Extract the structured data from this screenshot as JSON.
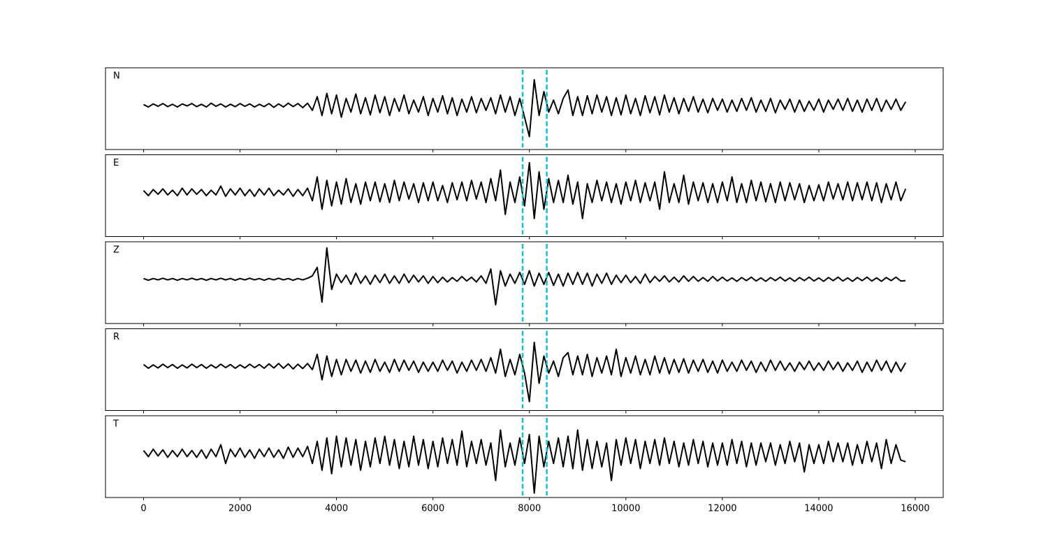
{
  "chart_data": {
    "type": "line",
    "layout": "stacked",
    "x": [
      0,
      100,
      200,
      300,
      400,
      500,
      600,
      700,
      800,
      900,
      1000,
      1100,
      1200,
      1300,
      1400,
      1500,
      1600,
      1700,
      1800,
      1900,
      2000,
      2100,
      2200,
      2300,
      2400,
      2500,
      2600,
      2700,
      2800,
      2900,
      3000,
      3100,
      3200,
      3300,
      3400,
      3500,
      3600,
      3700,
      3800,
      3900,
      4000,
      4100,
      4200,
      4300,
      4400,
      4500,
      4600,
      4700,
      4800,
      4900,
      5000,
      5100,
      5200,
      5300,
      5400,
      5500,
      5600,
      5700,
      5800,
      5900,
      6000,
      6100,
      6200,
      6300,
      6400,
      6500,
      6600,
      6700,
      6800,
      6900,
      7000,
      7100,
      7200,
      7300,
      7400,
      7500,
      7600,
      7700,
      7800,
      7900,
      8000,
      8100,
      8200,
      8300,
      8400,
      8500,
      8600,
      8700,
      8800,
      8900,
      9000,
      9100,
      9200,
      9300,
      9400,
      9500,
      9600,
      9700,
      9800,
      9900,
      10000,
      10100,
      10200,
      10300,
      10400,
      10500,
      10600,
      10700,
      10800,
      10900,
      11000,
      11100,
      11200,
      11300,
      11400,
      11500,
      11600,
      11700,
      11800,
      11900,
      12000,
      12100,
      12200,
      12300,
      12400,
      12500,
      12600,
      12700,
      12800,
      12900,
      13000,
      13100,
      13200,
      13300,
      13400,
      13500,
      13600,
      13700,
      13800,
      13900,
      14000,
      14100,
      14200,
      14300,
      14400,
      14500,
      14600,
      14700,
      14800,
      14900,
      15000,
      15100,
      15200,
      15300,
      15400,
      15500,
      15600,
      15700,
      15800
    ],
    "series": [
      {
        "name": "N",
        "color": "#000000",
        "values": [
          0.02,
          -0.05,
          0.04,
          -0.03,
          0.05,
          -0.04,
          0.03,
          -0.05,
          0.04,
          -0.02,
          0.05,
          -0.04,
          0.03,
          -0.05,
          0.06,
          -0.03,
          0.04,
          -0.05,
          0.03,
          -0.04,
          0.05,
          -0.03,
          0.04,
          -0.05,
          0.03,
          -0.04,
          0.05,
          -0.06,
          0.04,
          -0.05,
          0.06,
          -0.04,
          0.05,
          -0.07,
          0.06,
          -0.15,
          0.25,
          -0.3,
          0.35,
          -0.25,
          0.3,
          -0.35,
          0.2,
          -0.2,
          0.33,
          -0.25,
          0.22,
          -0.28,
          0.3,
          -0.22,
          0.25,
          -0.3,
          0.2,
          -0.18,
          0.3,
          -0.25,
          0.15,
          -0.2,
          0.25,
          -0.3,
          0.2,
          -0.2,
          0.28,
          -0.25,
          0.22,
          -0.3,
          0.18,
          -0.2,
          0.25,
          -0.22,
          0.2,
          -0.15,
          0.22,
          -0.25,
          0.3,
          -0.2,
          0.25,
          -0.3,
          0.2,
          -0.35,
          -0.92,
          0.75,
          -0.3,
          0.4,
          -0.2,
          0.15,
          -0.25,
          0.2,
          0.45,
          -0.3,
          0.25,
          -0.3,
          0.28,
          -0.25,
          0.3,
          -0.2,
          0.25,
          -0.3,
          0.22,
          -0.28,
          0.3,
          -0.25,
          0.2,
          -0.3,
          0.28,
          -0.22,
          0.25,
          -0.28,
          0.3,
          -0.2,
          0.22,
          -0.25,
          0.2,
          -0.18,
          0.25,
          -0.2,
          0.18,
          -0.22,
          0.2,
          -0.15,
          0.18,
          -0.2,
          0.15,
          -0.18,
          0.2,
          -0.15,
          0.22,
          -0.2,
          0.15,
          -0.18,
          0.2,
          -0.22,
          0.15,
          -0.12,
          0.18,
          -0.2,
          0.15,
          -0.18,
          0.12,
          -0.15,
          0.18,
          -0.2,
          0.15,
          -0.12,
          0.18,
          -0.15,
          0.2,
          -0.18,
          0.15,
          -0.2,
          0.18,
          -0.15,
          0.2,
          -0.18,
          0.15,
          -0.12,
          0.18,
          -0.15,
          0.1
        ]
      },
      {
        "name": "E",
        "color": "#000000",
        "values": [
          0.05,
          -0.1,
          0.08,
          -0.06,
          0.1,
          -0.08,
          0.06,
          -0.1,
          0.12,
          -0.08,
          0.1,
          -0.06,
          0.08,
          -0.1,
          0.06,
          -0.08,
          0.18,
          -0.12,
          0.1,
          -0.08,
          0.12,
          -0.1,
          0.08,
          -0.12,
          0.1,
          -0.08,
          0.12,
          -0.1,
          0.06,
          -0.08,
          0.1,
          -0.12,
          0.08,
          -0.1,
          0.12,
          -0.25,
          0.45,
          -0.5,
          0.35,
          -0.4,
          0.3,
          -0.35,
          0.4,
          -0.3,
          0.25,
          -0.35,
          0.3,
          -0.25,
          0.3,
          -0.28,
          0.25,
          -0.3,
          0.35,
          -0.25,
          0.3,
          -0.2,
          0.25,
          -0.3,
          0.28,
          -0.25,
          0.3,
          -0.25,
          0.2,
          -0.3,
          0.28,
          -0.22,
          0.3,
          -0.25,
          0.35,
          -0.2,
          0.3,
          -0.3,
          0.4,
          -0.25,
          0.65,
          -0.65,
          0.3,
          -0.3,
          0.45,
          -0.4,
          0.87,
          -0.77,
          0.6,
          -0.5,
          0.4,
          -0.3,
          0.35,
          -0.3,
          0.5,
          -0.35,
          0.3,
          -0.77,
          0.25,
          -0.3,
          0.35,
          -0.25,
          0.3,
          -0.3,
          0.25,
          -0.35,
          0.3,
          -0.25,
          0.35,
          -0.3,
          0.28,
          -0.25,
          0.3,
          -0.5,
          0.6,
          -0.3,
          0.25,
          -0.3,
          0.5,
          -0.35,
          0.3,
          -0.25,
          0.28,
          -0.3,
          0.25,
          -0.3,
          0.3,
          -0.25,
          0.45,
          -0.3,
          0.25,
          -0.3,
          0.35,
          -0.25,
          0.3,
          -0.28,
          0.25,
          -0.3,
          0.3,
          -0.25,
          0.28,
          -0.22,
          0.25,
          -0.3,
          0.2,
          -0.25,
          0.22,
          -0.25,
          0.3,
          -0.2,
          0.25,
          -0.22,
          0.3,
          -0.25,
          0.28,
          -0.22,
          0.3,
          -0.25,
          0.28,
          -0.3,
          0.25,
          -0.22,
          0.3,
          -0.25,
          0.1
        ]
      },
      {
        "name": "Z",
        "color": "#000000",
        "values": [
          0.02,
          -0.03,
          0.02,
          -0.02,
          0.03,
          -0.02,
          0.02,
          -0.03,
          0.02,
          -0.02,
          0.03,
          -0.02,
          0.02,
          -0.03,
          0.02,
          -0.02,
          0.03,
          -0.02,
          0.02,
          -0.03,
          0.02,
          -0.02,
          0.03,
          -0.02,
          0.02,
          -0.03,
          0.02,
          -0.02,
          0.03,
          -0.02,
          0.02,
          -0.03,
          0.02,
          -0.02,
          0.03,
          0.1,
          0.35,
          -0.67,
          0.92,
          -0.3,
          0.15,
          -0.1,
          0.12,
          -0.15,
          0.18,
          -0.12,
          0.1,
          -0.15,
          0.12,
          -0.1,
          0.15,
          -0.12,
          0.1,
          -0.12,
          0.15,
          -0.1,
          0.12,
          -0.08,
          0.1,
          -0.12,
          0.08,
          -0.1,
          0.06,
          -0.08,
          0.05,
          -0.06,
          0.08,
          -0.05,
          0.06,
          -0.08,
          0.1,
          -0.12,
          0.3,
          -0.75,
          0.25,
          -0.2,
          0.15,
          -0.12,
          0.2,
          -0.15,
          0.25,
          -0.2,
          0.18,
          -0.15,
          0.2,
          -0.18,
          0.15,
          -0.2,
          0.18,
          -0.15,
          0.2,
          -0.15,
          0.18,
          -0.2,
          0.15,
          -0.12,
          0.18,
          -0.15,
          0.12,
          -0.1,
          0.12,
          -0.1,
          0.08,
          -0.12,
          0.15,
          -0.1,
          0.08,
          -0.06,
          0.1,
          -0.08,
          0.06,
          -0.08,
          0.1,
          -0.06,
          0.08,
          -0.06,
          0.05,
          -0.06,
          0.08,
          -0.05,
          0.06,
          -0.05,
          0.04,
          -0.06,
          0.05,
          -0.04,
          0.06,
          -0.05,
          0.04,
          -0.06,
          0.05,
          -0.04,
          0.06,
          -0.05,
          0.04,
          -0.06,
          0.05,
          -0.04,
          0.06,
          -0.05,
          0.04,
          -0.06,
          0.05,
          -0.04,
          0.06,
          -0.05,
          0.04,
          -0.06,
          0.05,
          -0.04,
          0.06,
          -0.05,
          0.04,
          -0.06,
          0.05,
          -0.04,
          0.06,
          -0.05,
          -0.04
        ]
      },
      {
        "name": "R",
        "color": "#000000",
        "values": [
          0.05,
          -0.06,
          0.04,
          -0.05,
          0.06,
          -0.04,
          0.05,
          -0.06,
          0.04,
          -0.05,
          0.06,
          -0.04,
          0.05,
          -0.06,
          0.04,
          -0.05,
          0.06,
          -0.04,
          0.05,
          -0.06,
          0.04,
          -0.05,
          0.06,
          -0.04,
          0.05,
          -0.06,
          0.07,
          -0.05,
          0.08,
          -0.06,
          0.07,
          -0.08,
          0.06,
          -0.07,
          0.08,
          -0.1,
          0.35,
          -0.4,
          0.3,
          -0.3,
          0.2,
          -0.25,
          0.2,
          -0.15,
          0.18,
          -0.2,
          0.15,
          -0.18,
          0.2,
          -0.15,
          0.12,
          -0.18,
          0.2,
          -0.15,
          0.18,
          -0.12,
          0.15,
          -0.18,
          0.12,
          -0.15,
          0.12,
          -0.15,
          0.18,
          -0.12,
          0.15,
          -0.2,
          0.12,
          -0.15,
          0.18,
          -0.12,
          0.2,
          -0.15,
          0.25,
          -0.2,
          0.5,
          -0.3,
          0.2,
          -0.25,
          0.35,
          -0.2,
          -1.04,
          0.7,
          -0.5,
          0.3,
          -0.2,
          0.15,
          -0.3,
          0.25,
          0.4,
          -0.25,
          0.3,
          -0.25,
          0.35,
          -0.3,
          0.25,
          -0.2,
          0.3,
          -0.25,
          0.5,
          -0.3,
          0.25,
          -0.2,
          0.3,
          -0.25,
          0.2,
          -0.25,
          0.3,
          -0.2,
          0.25,
          -0.22,
          0.2,
          -0.18,
          0.22,
          -0.2,
          0.18,
          -0.15,
          0.2,
          -0.18,
          0.15,
          -0.2,
          0.18,
          -0.15,
          0.12,
          -0.15,
          0.18,
          -0.12,
          0.15,
          -0.18,
          0.12,
          -0.15,
          0.18,
          -0.12,
          0.15,
          -0.12,
          0.1,
          -0.15,
          0.12,
          -0.1,
          0.15,
          -0.12,
          0.1,
          -0.12,
          0.15,
          -0.1,
          0.12,
          -0.15,
          0.1,
          -0.12,
          0.15,
          -0.18,
          0.12,
          -0.15,
          0.18,
          -0.12,
          0.15,
          -0.18,
          0.12,
          -0.15,
          0.1
        ]
      },
      {
        "name": "T",
        "color": "#000000",
        "values": [
          0.08,
          -0.1,
          0.12,
          -0.08,
          0.1,
          -0.12,
          0.08,
          -0.1,
          0.12,
          -0.1,
          0.08,
          -0.12,
          0.1,
          -0.15,
          0.12,
          -0.1,
          0.25,
          -0.3,
          0.12,
          -0.1,
          0.15,
          -0.12,
          0.1,
          -0.15,
          0.12,
          -0.1,
          0.15,
          -0.12,
          0.1,
          -0.15,
          0.18,
          -0.12,
          0.15,
          -0.1,
          0.2,
          -0.3,
          0.35,
          -0.5,
          0.45,
          -0.6,
          0.5,
          -0.4,
          0.45,
          -0.35,
          0.4,
          -0.5,
          0.35,
          -0.4,
          0.45,
          -0.3,
          0.5,
          -0.35,
          0.4,
          -0.45,
          0.35,
          -0.4,
          0.5,
          -0.35,
          0.4,
          -0.45,
          0.35,
          -0.4,
          0.45,
          -0.3,
          0.4,
          -0.35,
          0.65,
          -0.4,
          0.35,
          -0.3,
          0.4,
          -0.35,
          0.3,
          -0.8,
          0.68,
          -0.4,
          0.3,
          -0.35,
          0.45,
          -0.3,
          0.55,
          -1.17,
          0.5,
          -0.4,
          0.35,
          -0.3,
          0.45,
          -0.4,
          0.5,
          -0.45,
          0.68,
          -0.5,
          0.4,
          -0.45,
          0.35,
          -0.4,
          0.3,
          -0.8,
          0.4,
          -0.35,
          0.45,
          -0.3,
          0.4,
          -0.45,
          0.35,
          -0.3,
          0.4,
          -0.35,
          0.45,
          -0.3,
          0.35,
          -0.4,
          0.3,
          -0.35,
          0.4,
          -0.3,
          0.35,
          -0.4,
          0.3,
          -0.35,
          0.3,
          -0.35,
          0.4,
          -0.3,
          0.35,
          -0.4,
          0.3,
          -0.35,
          0.3,
          -0.25,
          0.3,
          -0.35,
          0.25,
          -0.3,
          0.35,
          -0.25,
          0.3,
          -0.55,
          0.25,
          -0.3,
          0.25,
          -0.3,
          0.35,
          -0.25,
          0.3,
          -0.25,
          0.3,
          -0.35,
          0.25,
          -0.3,
          0.35,
          -0.25,
          0.3,
          -0.45,
          0.4,
          -0.3,
          0.25,
          -0.2,
          -0.25
        ]
      }
    ],
    "xlim": [
      -790,
      16580
    ],
    "xticks": [
      0,
      2000,
      4000,
      6000,
      8000,
      10000,
      12000,
      14000,
      16000
    ],
    "ylim": [
      -1.3,
      1.1
    ],
    "vlines": [
      7860,
      8360
    ],
    "vline_color": "#17becf"
  }
}
